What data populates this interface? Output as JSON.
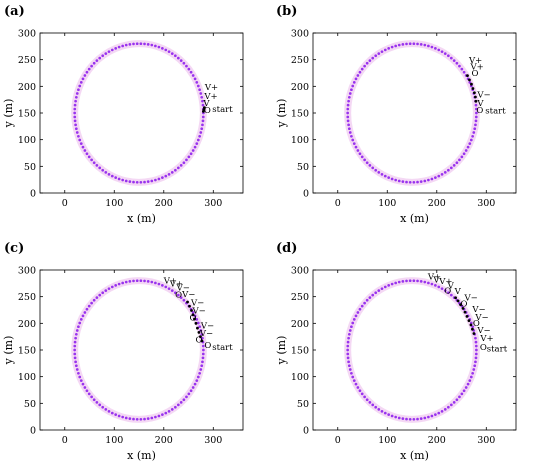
{
  "colors": {
    "trajectory": "#9933ee",
    "halo": "#f4d8f4",
    "robot_marker": "#000000",
    "axes": "#000000"
  },
  "chart_data": [
    {
      "panel": "(a)",
      "type": "scatter",
      "xlabel": "x (m)",
      "ylabel": "y (m)",
      "xlim": [
        -50,
        360
      ],
      "ylim": [
        0,
        300
      ],
      "xticks": [
        0,
        100,
        200,
        300
      ],
      "yticks": [
        0,
        50,
        100,
        150,
        200,
        250,
        300
      ],
      "grid": false,
      "circle": {
        "center": [
          150,
          150
        ],
        "radius": 130,
        "points": 110
      },
      "robot_path": [
        [
          280,
          153
        ],
        [
          281,
          156
        ],
        [
          282,
          160
        ]
      ],
      "annotations": [
        {
          "text": "V+",
          "x": 283,
          "y": 193
        },
        {
          "text": "V+",
          "x": 282,
          "y": 176
        },
        {
          "text": "V",
          "x": 280,
          "y": 163
        },
        {
          "text": "O",
          "x": 281,
          "y": 150
        },
        {
          "text": "start",
          "x": 298,
          "y": 152
        }
      ]
    },
    {
      "panel": "(b)",
      "type": "scatter",
      "xlabel": "x (m)",
      "ylabel": "y (m)",
      "xlim": [
        -50,
        360
      ],
      "ylim": [
        0,
        300
      ],
      "xticks": [
        0,
        100,
        200,
        300
      ],
      "yticks": [
        0,
        50,
        100,
        150,
        200,
        250,
        300
      ],
      "grid": false,
      "circle": {
        "center": [
          150,
          150
        ],
        "radius": 130,
        "points": 110
      },
      "robot_path": [
        [
          262,
          220
        ],
        [
          266,
          212
        ],
        [
          270,
          204
        ],
        [
          273,
          196
        ],
        [
          276,
          188
        ],
        [
          278,
          180
        ],
        [
          279,
          172
        ]
      ],
      "annotations": [
        {
          "text": "V+",
          "x": 265,
          "y": 244
        },
        {
          "text": "V+",
          "x": 268,
          "y": 232
        },
        {
          "text": "O",
          "x": 270,
          "y": 219
        },
        {
          "text": "V−",
          "x": 282,
          "y": 179
        },
        {
          "text": "V",
          "x": 282,
          "y": 163
        },
        {
          "text": "O",
          "x": 280,
          "y": 150
        },
        {
          "text": "start",
          "x": 298,
          "y": 149
        }
      ]
    },
    {
      "panel": "(c)",
      "type": "scatter",
      "xlabel": "x (m)",
      "ylabel": "y (m)",
      "xlim": [
        -50,
        360
      ],
      "ylim": [
        0,
        300
      ],
      "xticks": [
        0,
        100,
        200,
        300
      ],
      "yticks": [
        0,
        50,
        100,
        150,
        200,
        250,
        300
      ],
      "grid": false,
      "circle": {
        "center": [
          150,
          150
        ],
        "radius": 130,
        "points": 110
      },
      "robot_path": [
        [
          248,
          240
        ],
        [
          252,
          232
        ],
        [
          256,
          224
        ],
        [
          259,
          216
        ],
        [
          262,
          208
        ],
        [
          265,
          200
        ],
        [
          268,
          191
        ],
        [
          271,
          183
        ],
        [
          274,
          175
        ],
        [
          277,
          167
        ]
      ],
      "annotations": [
        {
          "text": "V+",
          "x": 200,
          "y": 275
        },
        {
          "text": "V+",
          "x": 212,
          "y": 269
        },
        {
          "text": "V−",
          "x": 226,
          "y": 262
        },
        {
          "text": "O",
          "x": 223,
          "y": 248
        },
        {
          "text": "V−",
          "x": 237,
          "y": 249
        },
        {
          "text": "V−",
          "x": 255,
          "y": 233
        },
        {
          "text": "V−",
          "x": 258,
          "y": 218
        },
        {
          "text": "O",
          "x": 252,
          "y": 205
        },
        {
          "text": "V−",
          "x": 275,
          "y": 190
        },
        {
          "text": "V−",
          "x": 273,
          "y": 176
        },
        {
          "text": "O",
          "x": 264,
          "y": 164
        },
        {
          "text": "O",
          "x": 282,
          "y": 154
        },
        {
          "text": "start",
          "x": 298,
          "y": 150
        }
      ]
    },
    {
      "panel": "(d)",
      "type": "scatter",
      "xlabel": "x (m)",
      "ylabel": "y (m)",
      "xlim": [
        -50,
        360
      ],
      "ylim": [
        0,
        300
      ],
      "xticks": [
        0,
        100,
        200,
        300
      ],
      "yticks": [
        0,
        50,
        100,
        150,
        200,
        250,
        300
      ],
      "grid": false,
      "circle": {
        "center": [
          150,
          150
        ],
        "radius": 130,
        "points": 110
      },
      "robot_path": [
        [
          238,
          248
        ],
        [
          243,
          242
        ],
        [
          248,
          235
        ],
        [
          253,
          228
        ],
        [
          257,
          221
        ],
        [
          261,
          213
        ],
        [
          265,
          205
        ],
        [
          269,
          197
        ],
        [
          272,
          189
        ],
        [
          275,
          181
        ]
      ],
      "annotations": [
        {
          "text": "V+",
          "x": 182,
          "y": 282
        },
        {
          "text": "V",
          "x": 193,
          "y": 277
        },
        {
          "text": "V+",
          "x": 205,
          "y": 274
        },
        {
          "text": "V",
          "x": 222,
          "y": 265
        },
        {
          "text": "O",
          "x": 215,
          "y": 256
        },
        {
          "text": "V",
          "x": 236,
          "y": 255
        },
        {
          "text": "V−",
          "x": 256,
          "y": 243
        },
        {
          "text": "O",
          "x": 248,
          "y": 232
        },
        {
          "text": "V−",
          "x": 272,
          "y": 221
        },
        {
          "text": "V−",
          "x": 278,
          "y": 206
        },
        {
          "text": "O",
          "x": 273,
          "y": 195
        },
        {
          "text": "V−",
          "x": 282,
          "y": 182
        },
        {
          "text": "V+",
          "x": 288,
          "y": 167
        },
        {
          "text": "O",
          "x": 287,
          "y": 150
        },
        {
          "text": "start",
          "x": 301,
          "y": 147
        }
      ]
    }
  ]
}
